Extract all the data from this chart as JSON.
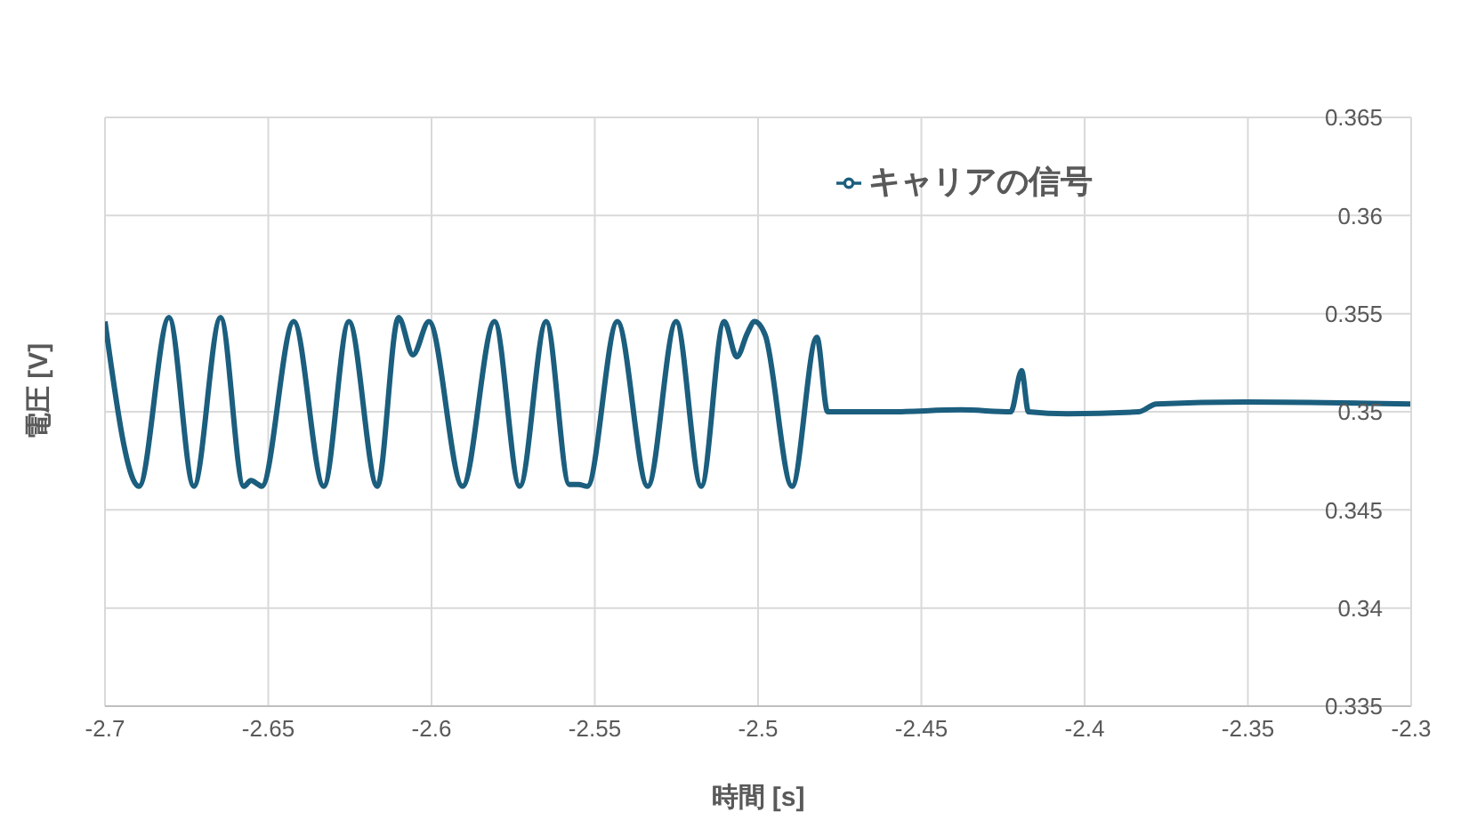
{
  "chart_data": {
    "type": "line",
    "xlabel": "時間 [s]",
    "ylabel": "電圧 [V]",
    "xlim": [
      -2.7,
      -2.3
    ],
    "xticks": [
      -2.7,
      -2.65,
      -2.6,
      -2.55,
      -2.5,
      -2.45,
      -2.4,
      -2.35,
      -2.3
    ],
    "ylim": [
      0.335,
      0.365
    ],
    "yticks": [
      0.335,
      0.34,
      0.345,
      0.35,
      0.355,
      0.36,
      0.365
    ],
    "grid": true,
    "legend": "top right",
    "marker": "none",
    "line_style": "solid",
    "series": [
      {
        "name": "キャリアの信号",
        "color": "#1b5e7e",
        "x": [
          -2.7,
          -2.6896,
          -2.6804,
          -2.6728,
          -2.6646,
          -2.6575,
          -2.6553,
          -2.6531,
          -2.652,
          -2.6422,
          -2.633,
          -2.6253,
          -2.6166,
          -2.6101,
          -2.6057,
          -2.6008,
          -2.5905,
          -2.5807,
          -2.573,
          -2.5649,
          -2.5578,
          -2.555,
          -2.5523,
          -2.5431,
          -2.5338,
          -2.5251,
          -2.5174,
          -2.5104,
          -2.5065,
          -2.5033,
          -2.5011,
          -2.4978,
          -2.4896,
          -2.482,
          -2.4787,
          -2.4597,
          -2.4379,
          -2.4226,
          -2.4193,
          -2.4172,
          -2.4052,
          -2.3834,
          -2.378,
          -2.3507,
          -2.3
        ],
        "values": [
          0.3546,
          0.3462,
          0.3548,
          0.3462,
          0.3548,
          0.3462,
          0.3465,
          0.3463,
          0.3462,
          0.3546,
          0.3462,
          0.3546,
          0.3462,
          0.3548,
          0.3529,
          0.3546,
          0.3462,
          0.3546,
          0.3462,
          0.3546,
          0.3463,
          0.3463,
          0.3462,
          0.3546,
          0.3462,
          0.3546,
          0.3462,
          0.3546,
          0.3528,
          0.354,
          0.3546,
          0.3539,
          0.3462,
          0.3538,
          0.35,
          0.35,
          0.3501,
          0.35,
          0.3521,
          0.35,
          0.3499,
          0.35,
          0.3504,
          0.3505,
          0.3504
        ]
      }
    ]
  }
}
